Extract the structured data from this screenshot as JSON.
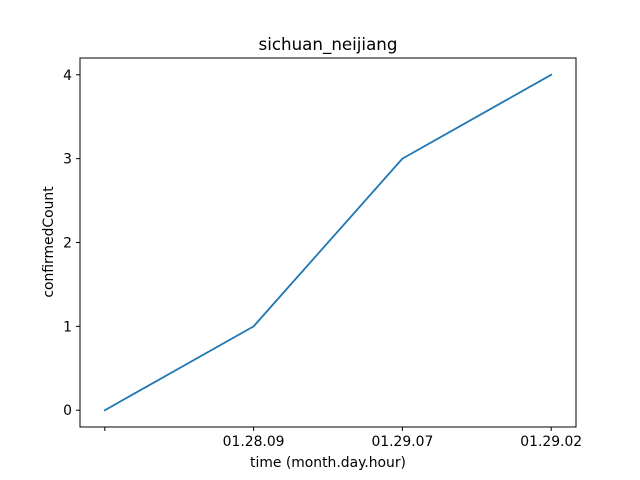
{
  "chart_data": {
    "type": "line",
    "title": "sichuan_neijiang",
    "xlabel": "time (month.day.hour)",
    "ylabel": "confirmedCount",
    "categories": [
      "",
      "01.28.09",
      "01.29.07",
      "01.29.02"
    ],
    "series": [
      {
        "values": [
          0,
          1,
          3,
          4
        ]
      }
    ],
    "ylim": [
      -0.2,
      4.2
    ],
    "yticks": [
      0,
      1,
      2,
      3,
      4
    ],
    "grid": false,
    "line_color": "#1f77b4"
  }
}
